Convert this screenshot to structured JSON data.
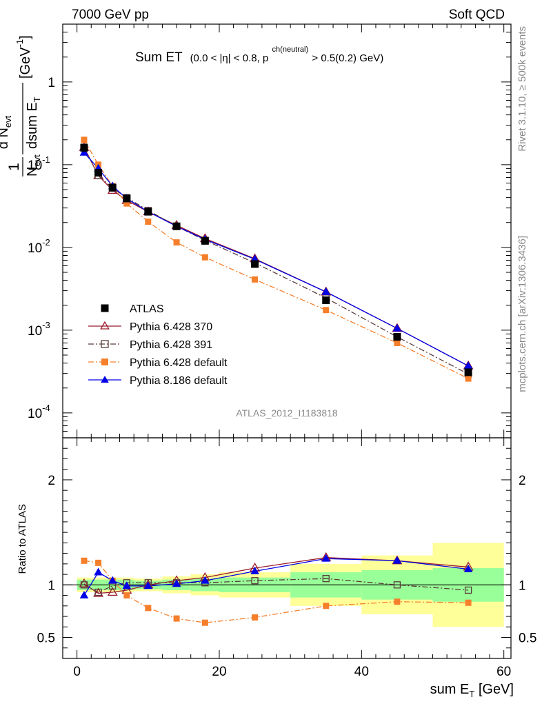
{
  "header": {
    "left": "7000 GeV pp",
    "right": "Soft QCD"
  },
  "side": {
    "top": "Rivet 3.1.10, ≥ 500k events",
    "bottom": "mcplots.cern.ch [arXiv:1306.3436]"
  },
  "main_title": {
    "text": "Sum ET",
    "cut_a": "(0.0 < |η| < 0.8, p",
    "cut_sup": "ch(neutral)",
    "cut_b": " > 0.5(0.2) GeV)"
  },
  "analysis_id": "ATLAS_2012_I1183818",
  "y_title": {
    "one": "1",
    "n_evt": "N",
    "n_sub": "evt",
    "dn": "d N",
    "dn_sub": "evt",
    "dsum": "dsum E",
    "dsum_sub": "T",
    "unit": "[GeV",
    "unit_sup": "-1",
    "unit_end": "]"
  },
  "ratio_ylabel": "Ratio to ATLAS",
  "x_title": {
    "text": "sum E",
    "sub": "T",
    "unit": " [GeV]"
  },
  "chart_data": {
    "type": "line",
    "x": [
      1,
      3,
      5,
      7,
      10,
      14,
      18,
      25,
      35,
      45,
      55
    ],
    "bin_edges": [
      0,
      2,
      4,
      6,
      8,
      12,
      16,
      20,
      30,
      40,
      50,
      60
    ],
    "xlim": [
      -2,
      61
    ],
    "upper": {
      "yscale": "log",
      "ylim": [
        5e-05,
        5
      ],
      "tick_labels": [
        "1",
        "10",
        "10",
        "10",
        "10"
      ],
      "tick_exponents": [
        "",
        "-1",
        "-2",
        "-3",
        "-4"
      ],
      "tick_values": [
        1,
        0.1,
        0.01,
        0.001,
        0.0001
      ]
    },
    "ratio": {
      "ylim": [
        0.3,
        2.4
      ],
      "tick_labels": [
        "2",
        "1",
        "0.5"
      ],
      "tick_values": [
        2,
        1,
        0.5
      ],
      "band_inner": [
        0.05,
        0.05,
        0.05,
        0.05,
        0.04,
        0.05,
        0.06,
        0.07,
        0.12,
        0.14,
        0.16
      ],
      "band_outer": [
        0.07,
        0.07,
        0.07,
        0.07,
        0.06,
        0.08,
        0.1,
        0.12,
        0.2,
        0.28,
        0.4
      ]
    },
    "x_ticks": [
      0,
      20,
      40,
      60
    ],
    "x_tick_labels": [
      "0",
      "20",
      "40",
      "60"
    ],
    "legend_position": "lower-left",
    "series": [
      {
        "name": "ATLAS",
        "color": "#000000",
        "marker": "square-filled",
        "line": "none",
        "values": [
          0.16,
          0.08,
          0.053,
          0.039,
          0.027,
          0.018,
          0.012,
          0.0063,
          0.0023,
          0.00083,
          0.00031
        ],
        "ratio": [
          1,
          1,
          1,
          1,
          1,
          1,
          1,
          1,
          1,
          1,
          1
        ]
      },
      {
        "name": "Pythia 6.428 370",
        "color": "#9b1b2c",
        "marker": "triangle-open",
        "line": "solid",
        "values": [
          0.162,
          0.074,
          0.049,
          0.037,
          0.027,
          0.0185,
          0.0128,
          0.0073,
          0.0029,
          0.00105,
          0.00037
        ],
        "ratio": [
          1.01,
          0.92,
          0.93,
          0.95,
          1.0,
          1.04,
          1.07,
          1.16,
          1.26,
          1.23,
          1.17
        ]
      },
      {
        "name": "Pythia 6.428 391",
        "color": "#5a3a3a",
        "marker": "square-open",
        "line": "dashdot",
        "values": [
          0.163,
          0.074,
          0.052,
          0.04,
          0.028,
          0.018,
          0.0122,
          0.0065,
          0.00245,
          0.00083,
          0.000295
        ],
        "ratio": [
          1.0,
          0.93,
          0.99,
          1.02,
          1.02,
          1.02,
          1.02,
          1.04,
          1.06,
          1.0,
          0.95
        ]
      },
      {
        "name": "Pythia 6.428 default",
        "color": "#f57f2b",
        "marker": "square-filled",
        "line": "dashdot",
        "values": [
          0.2,
          0.1,
          0.055,
          0.034,
          0.0205,
          0.0115,
          0.0076,
          0.0041,
          0.00175,
          0.0007,
          0.00026
        ],
        "ratio": [
          1.23,
          1.21,
          1.04,
          0.9,
          0.78,
          0.68,
          0.64,
          0.69,
          0.8,
          0.84,
          0.83
        ]
      },
      {
        "name": "Pythia 8.186 default",
        "color": "#0000e6",
        "marker": "triangle-filled",
        "line": "solid",
        "values": [
          0.14,
          0.09,
          0.055,
          0.039,
          0.027,
          0.018,
          0.0125,
          0.0072,
          0.0029,
          0.00105,
          0.00037
        ],
        "ratio": [
          0.9,
          1.12,
          1.04,
          0.99,
          0.99,
          1.01,
          1.04,
          1.13,
          1.25,
          1.23,
          1.15
        ]
      }
    ]
  }
}
